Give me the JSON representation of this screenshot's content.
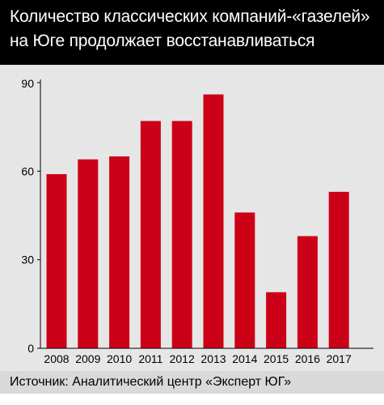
{
  "title": {
    "line1": "Количество классических компаний-«газелей»",
    "line2": "на Юге продолжает восстанавливаться"
  },
  "source": "Источник: Аналитический центр «Эксперт ЮГ»",
  "colors": {
    "bar": "#cc0017",
    "title_bg": "#000000",
    "panel_bg": "#e6e6e6",
    "source_bg": "#d9d9d9"
  },
  "chart_data": {
    "type": "bar",
    "categories": [
      "2008",
      "2009",
      "2010",
      "2011",
      "2012",
      "2013",
      "2014",
      "2015",
      "2016",
      "2017"
    ],
    "values": [
      59,
      64,
      65,
      77,
      77,
      86,
      46,
      19,
      38,
      53
    ],
    "title": "Количество классических компаний-«газелей» на Юге продолжает восстанавливаться",
    "xlabel": "",
    "ylabel": "",
    "ylim": [
      0,
      90
    ],
    "yticks": [
      0,
      30,
      60,
      90
    ],
    "grid": false,
    "legend": "none"
  }
}
